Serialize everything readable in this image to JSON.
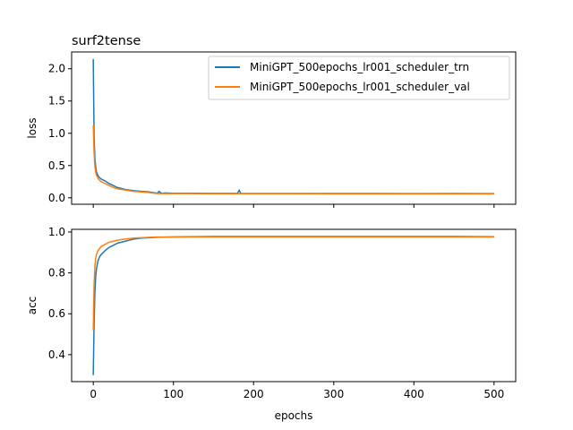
{
  "colors": {
    "train": "#1f77b4",
    "val": "#ff7f0e"
  },
  "chart_data": [
    {
      "type": "line",
      "title": "surf2tense",
      "xlabel": "",
      "ylabel": "loss",
      "xlim": [
        -27,
        527
      ],
      "ylim": [
        -0.1,
        2.26
      ],
      "xticks": [
        0,
        100,
        200,
        300,
        400,
        500
      ],
      "show_xtick_labels": false,
      "yticks": [
        0.0,
        0.5,
        1.0,
        1.5,
        2.0
      ],
      "ytick_labels": [
        "0.0",
        "0.5",
        "1.0",
        "1.5",
        "2.0"
      ],
      "grid": false,
      "legend": "top-right",
      "series": [
        {
          "name": "MiniGPT_500epochs_lr001_scheduler_trn",
          "color": "#1f77b4",
          "x": [
            0,
            1,
            2,
            3,
            4,
            6,
            8,
            10,
            15,
            20,
            25,
            30,
            40,
            50,
            60,
            70,
            75,
            80,
            82,
            85,
            90,
            100,
            120,
            150,
            180,
            182,
            184,
            200,
            250,
            300,
            350,
            400,
            450,
            500
          ],
          "y": [
            2.15,
            0.95,
            0.62,
            0.48,
            0.4,
            0.34,
            0.31,
            0.29,
            0.26,
            0.22,
            0.19,
            0.16,
            0.13,
            0.11,
            0.1,
            0.09,
            0.08,
            0.07,
            0.1,
            0.07,
            0.075,
            0.07,
            0.07,
            0.068,
            0.068,
            0.12,
            0.068,
            0.067,
            0.066,
            0.066,
            0.066,
            0.065,
            0.066,
            0.065
          ]
        },
        {
          "name": "MiniGPT_500epochs_lr001_scheduler_val",
          "color": "#ff7f0e",
          "x": [
            0,
            1,
            2,
            3,
            4,
            6,
            8,
            10,
            15,
            20,
            25,
            30,
            40,
            50,
            60,
            70,
            80,
            90,
            100,
            120,
            150,
            200,
            250,
            300,
            350,
            400,
            450,
            500
          ],
          "y": [
            1.12,
            0.7,
            0.48,
            0.4,
            0.35,
            0.3,
            0.27,
            0.25,
            0.22,
            0.19,
            0.16,
            0.14,
            0.12,
            0.1,
            0.09,
            0.08,
            0.065,
            0.065,
            0.065,
            0.065,
            0.063,
            0.063,
            0.063,
            0.062,
            0.062,
            0.062,
            0.062,
            0.062
          ]
        }
      ]
    },
    {
      "type": "line",
      "title": "",
      "xlabel": "epochs",
      "ylabel": "acc",
      "xlim": [
        -27,
        527
      ],
      "ylim": [
        0.268,
        1.013
      ],
      "xticks": [
        0,
        100,
        200,
        300,
        400,
        500
      ],
      "xtick_labels": [
        "0",
        "100",
        "200",
        "300",
        "400",
        "500"
      ],
      "yticks": [
        0.4,
        0.6,
        0.8,
        1.0
      ],
      "ytick_labels": [
        "0.4",
        "0.6",
        "0.8",
        "1.0"
      ],
      "grid": false,
      "series": [
        {
          "name": "MiniGPT_500epochs_lr001_scheduler_trn",
          "color": "#1f77b4",
          "x": [
            0,
            1,
            2,
            3,
            4,
            6,
            8,
            10,
            15,
            20,
            25,
            30,
            40,
            50,
            60,
            70,
            80,
            100,
            120,
            150,
            200,
            250,
            300,
            350,
            400,
            450,
            500
          ],
          "y": [
            0.3,
            0.55,
            0.7,
            0.78,
            0.82,
            0.86,
            0.88,
            0.89,
            0.91,
            0.925,
            0.935,
            0.945,
            0.955,
            0.965,
            0.97,
            0.972,
            0.974,
            0.976,
            0.977,
            0.978,
            0.978,
            0.978,
            0.978,
            0.978,
            0.978,
            0.978,
            0.977
          ]
        },
        {
          "name": "MiniGPT_500epochs_lr001_scheduler_val",
          "color": "#ff7f0e",
          "x": [
            0,
            1,
            2,
            3,
            4,
            6,
            8,
            10,
            15,
            20,
            25,
            30,
            40,
            50,
            60,
            70,
            80,
            100,
            120,
            150,
            200,
            250,
            300,
            350,
            400,
            450,
            500
          ],
          "y": [
            0.52,
            0.74,
            0.83,
            0.87,
            0.89,
            0.91,
            0.92,
            0.93,
            0.94,
            0.95,
            0.955,
            0.96,
            0.966,
            0.97,
            0.972,
            0.974,
            0.975,
            0.976,
            0.976,
            0.976,
            0.976,
            0.976,
            0.976,
            0.976,
            0.976,
            0.976,
            0.976
          ]
        }
      ]
    }
  ]
}
